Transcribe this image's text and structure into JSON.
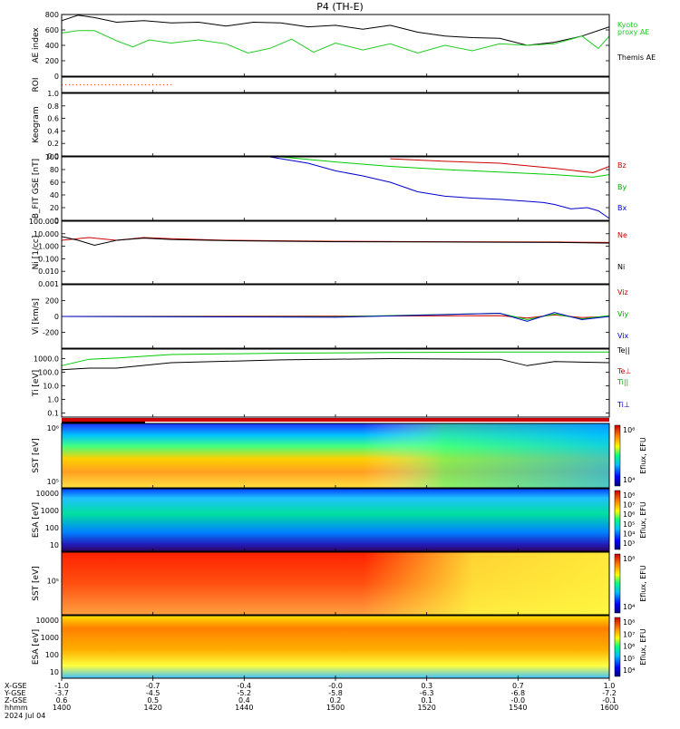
{
  "title": "P4 (TH-E)",
  "date": "2024 Jul 04",
  "chart_data": [
    {
      "type": "line",
      "id": "ae",
      "ylabel": "AE index",
      "ylim": [
        0,
        800
      ],
      "yticks": [
        "800",
        "600",
        "400",
        "200",
        "0"
      ],
      "ytick_vals": [
        800,
        600,
        400,
        200,
        0
      ],
      "legend": [
        {
          "text": "Kyoto",
          "color": "#22cc22"
        },
        {
          "text": "proxy AE",
          "color": "#22cc22"
        },
        {
          "text": "Themis AE",
          "color": "#000000"
        }
      ],
      "series": [
        {
          "name": "Themis AE",
          "color": "#000000",
          "x": [
            0,
            0.03,
            0.06,
            0.1,
            0.15,
            0.2,
            0.25,
            0.3,
            0.35,
            0.4,
            0.45,
            0.5,
            0.55,
            0.6,
            0.65,
            0.7,
            0.75,
            0.8,
            0.85,
            0.9,
            0.95,
            1.0
          ],
          "y": [
            720,
            790,
            760,
            700,
            720,
            690,
            700,
            650,
            700,
            690,
            640,
            660,
            610,
            660,
            570,
            520,
            500,
            490,
            400,
            440,
            520,
            640
          ]
        },
        {
          "name": "Kyoto proxy AE",
          "color": "#22cc22",
          "x": [
            0,
            0.03,
            0.06,
            0.1,
            0.13,
            0.16,
            0.2,
            0.25,
            0.3,
            0.34,
            0.38,
            0.42,
            0.46,
            0.5,
            0.55,
            0.6,
            0.65,
            0.7,
            0.75,
            0.8,
            0.85,
            0.9,
            0.95,
            0.98,
            1.0
          ],
          "y": [
            560,
            590,
            590,
            460,
            380,
            470,
            430,
            470,
            420,
            300,
            360,
            480,
            310,
            430,
            340,
            420,
            300,
            400,
            330,
            420,
            400,
            420,
            520,
            360,
            520
          ]
        }
      ]
    },
    {
      "type": "line",
      "id": "roi",
      "ylabel": "ROI",
      "series": [
        {
          "name": "",
          "color": "#ff4400",
          "x": [
            0,
            0.2
          ],
          "y": [
            0.5,
            0.5
          ]
        }
      ]
    },
    {
      "type": "line",
      "id": "keogram",
      "ylabel": "Keogram",
      "ylim": [
        0,
        1
      ],
      "yticks": [
        "1.0",
        "0.8",
        "0.6",
        "0.4",
        "0.2",
        "0.0"
      ],
      "ytick_vals": [
        1,
        0.8,
        0.6,
        0.4,
        0.2,
        0
      ]
    },
    {
      "type": "line",
      "id": "bfield",
      "ylabel": "B_FIT GSE [nT]",
      "ylim": [
        0,
        100
      ],
      "yticks": [
        "100",
        "80",
        "60",
        "40",
        "20",
        "0"
      ],
      "ytick_vals": [
        100,
        80,
        60,
        40,
        20,
        0
      ],
      "legend": [
        {
          "text": "Bz",
          "color": "#cc0000"
        },
        {
          "text": "By",
          "color": "#00aa00"
        },
        {
          "text": "Bx",
          "color": "#0000cc"
        }
      ],
      "series": [
        {
          "name": "Bz",
          "color": "#cc0000",
          "x": [
            0.6,
            0.7,
            0.8,
            0.9,
            0.97,
            1.0
          ],
          "y": [
            97,
            93,
            90,
            82,
            75,
            85
          ]
        },
        {
          "name": "By",
          "color": "#00cc00",
          "x": [
            0.4,
            0.5,
            0.6,
            0.7,
            0.8,
            0.9,
            0.97,
            1.0
          ],
          "y": [
            100,
            92,
            85,
            80,
            76,
            72,
            68,
            72
          ]
        },
        {
          "name": "Bx",
          "color": "#0000cc",
          "x": [
            0.38,
            0.45,
            0.5,
            0.55,
            0.6,
            0.65,
            0.7,
            0.75,
            0.8,
            0.85,
            0.88,
            0.9,
            0.93,
            0.96,
            0.98,
            1.0
          ],
          "y": [
            100,
            90,
            78,
            70,
            60,
            45,
            38,
            35,
            33,
            30,
            28,
            25,
            18,
            20,
            15,
            3
          ]
        }
      ]
    },
    {
      "type": "line",
      "id": "ni",
      "ylabel": "Ni [1/cc]",
      "scale": "log",
      "ylim": [
        0.001,
        100
      ],
      "yticks": [
        "100.000",
        "10.000",
        "1.000",
        "0.100",
        "0.010",
        "0.001"
      ],
      "ytick_vals": [
        100,
        10,
        1,
        0.1,
        0.01,
        0.001
      ],
      "legend": [
        {
          "text": "Ne",
          "color": "#cc0000"
        },
        {
          "text": "Ni",
          "color": "#000000"
        }
      ],
      "series": [
        {
          "name": "Ne",
          "color": "#cc0000",
          "x": [
            0,
            0.05,
            0.1,
            0.15,
            0.2,
            0.3,
            0.5,
            0.7,
            0.9,
            1.0
          ],
          "y": [
            3.0,
            5.0,
            3.0,
            5.0,
            4.0,
            3.0,
            2.5,
            2.3,
            2.2,
            2.0
          ]
        },
        {
          "name": "Ni",
          "color": "#000000",
          "x": [
            0,
            0.03,
            0.06,
            0.1,
            0.15,
            0.2,
            0.3,
            0.5,
            0.7,
            0.9,
            1.0
          ],
          "y": [
            6.0,
            3.0,
            1.2,
            3.0,
            4.5,
            3.5,
            2.8,
            2.3,
            2.2,
            2.0,
            1.8
          ]
        }
      ]
    },
    {
      "type": "line",
      "id": "vi",
      "ylabel": "Vi [km/s]",
      "ylim": [
        -400,
        400
      ],
      "yticks": [
        "200",
        "0",
        "-200"
      ],
      "ytick_vals": [
        200,
        0,
        -200
      ],
      "legend": [
        {
          "text": "Viz",
          "color": "#cc0000"
        },
        {
          "text": "Viy",
          "color": "#00aa00"
        },
        {
          "text": "Vix",
          "color": "#0000cc"
        }
      ],
      "series": [
        {
          "name": "Viz",
          "color": "#cc0000",
          "x": [
            0,
            0.5,
            0.8,
            0.85,
            0.9,
            0.95,
            1.0
          ],
          "y": [
            0,
            5,
            10,
            -20,
            20,
            -15,
            0
          ]
        },
        {
          "name": "Viy",
          "color": "#00cc00",
          "x": [
            0,
            0.5,
            0.8,
            0.85,
            0.9,
            0.95,
            1.0
          ],
          "y": [
            0,
            -5,
            40,
            -40,
            30,
            -30,
            10
          ]
        },
        {
          "name": "Vix",
          "color": "#0000cc",
          "x": [
            0,
            0.5,
            0.8,
            0.85,
            0.9,
            0.95,
            1.0
          ],
          "y": [
            0,
            -10,
            40,
            -60,
            50,
            -40,
            0
          ]
        }
      ]
    },
    {
      "type": "line",
      "id": "ti",
      "ylabel": "Ti [eV]",
      "scale": "log",
      "ylim": [
        0.05,
        5000
      ],
      "yticks": [
        "1000.0",
        "100.0",
        "10.0",
        "1.0",
        "0.1"
      ],
      "ytick_vals": [
        1000,
        100,
        10,
        1,
        0.1
      ],
      "legend": [
        {
          "text": "Te||",
          "color": "#000000"
        },
        {
          "text": "Te⊥",
          "color": "#cc0000"
        },
        {
          "text": "Ti||",
          "color": "#00aa00"
        },
        {
          "text": "Ti⊥",
          "color": "#0000cc"
        }
      ],
      "series": [
        {
          "name": "Ti||",
          "color": "#00cc00",
          "x": [
            0,
            0.05,
            0.1,
            0.2,
            0.4,
            0.6,
            0.8,
            1.0
          ],
          "y": [
            300,
            900,
            1100,
            2000,
            2500,
            2800,
            3000,
            3000
          ]
        },
        {
          "name": "Ti",
          "color": "#000000",
          "x": [
            0,
            0.05,
            0.1,
            0.2,
            0.4,
            0.6,
            0.8,
            0.85,
            0.9,
            1.0
          ],
          "y": [
            150,
            200,
            200,
            500,
            800,
            1000,
            900,
            300,
            600,
            500
          ]
        }
      ]
    },
    {
      "type": "heatmap",
      "id": "sst_e",
      "ylabel": "SST [eV]",
      "yticks": [
        "10⁶",
        "10⁵"
      ],
      "cbar_ticks": [
        "10⁸",
        "10⁴"
      ],
      "cbar_label": "Eflux, EFU"
    },
    {
      "type": "heatmap",
      "id": "esa_e",
      "ylabel": "ESA [eV]",
      "yticks": [
        "10000",
        "1000",
        "100",
        "10"
      ],
      "cbar_ticks": [
        "10⁸",
        "10⁷",
        "10⁶",
        "10⁵",
        "10⁴",
        "10³"
      ],
      "cbar_label": "Eflux, EFU"
    },
    {
      "type": "heatmap",
      "id": "sst_i",
      "ylabel": "SST [eV]",
      "yticks": [
        "10⁵"
      ],
      "cbar_ticks": [
        "10⁸",
        "10⁴"
      ],
      "cbar_label": "Eflux, EFU"
    },
    {
      "type": "heatmap",
      "id": "esa_i",
      "ylabel": "ESA [eV]",
      "yticks": [
        "10000",
        "1000",
        "100",
        "10"
      ],
      "cbar_ticks": [
        "10⁸",
        "10⁷",
        "10⁶",
        "10⁵",
        "10⁴"
      ],
      "cbar_label": "Eflux, EFU"
    }
  ],
  "xaxis": {
    "row_labels": [
      "X-GSE",
      "Y-GSE",
      "Z-GSE",
      "hhmm",
      "2024 Jul 04"
    ],
    "columns": [
      {
        "x": 0.0,
        "vals": [
          "-1.0",
          "-3.7",
          "0.6",
          "1400"
        ]
      },
      {
        "x": 0.1667,
        "vals": [
          "-0.7",
          "-4.5",
          "0.5",
          "1420"
        ]
      },
      {
        "x": 0.3333,
        "vals": [
          "-0.4",
          "-5.2",
          "0.4",
          "1440"
        ]
      },
      {
        "x": 0.5,
        "vals": [
          "-0.0",
          "-5.8",
          "0.2",
          "1500"
        ]
      },
      {
        "x": 0.6667,
        "vals": [
          "0.3",
          "-6.3",
          "0.1",
          "1520"
        ]
      },
      {
        "x": 0.8333,
        "vals": [
          "0.7",
          "-6.8",
          "-0.0",
          "1540"
        ]
      },
      {
        "x": 1.0,
        "vals": [
          "1.0",
          "-7.2",
          "-0.1",
          "1600"
        ]
      }
    ]
  },
  "colors": {
    "axis": "#000000",
    "status_red": "#cc0000",
    "status_black": "#000000"
  }
}
